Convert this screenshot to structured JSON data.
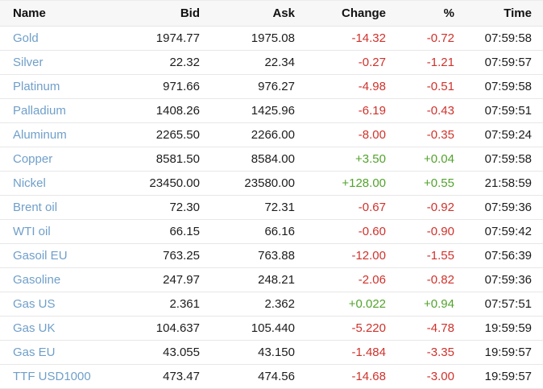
{
  "table": {
    "columns": [
      {
        "key": "name",
        "label": "Name"
      },
      {
        "key": "bid",
        "label": "Bid"
      },
      {
        "key": "ask",
        "label": "Ask"
      },
      {
        "key": "change",
        "label": "Change"
      },
      {
        "key": "pct",
        "label": "%"
      },
      {
        "key": "time",
        "label": "Time"
      }
    ],
    "rows": [
      {
        "name": "Gold",
        "bid": "1974.77",
        "ask": "1975.08",
        "change": "-14.32",
        "pct": "-0.72",
        "time": "07:59:58",
        "direction": "down"
      },
      {
        "name": "Silver",
        "bid": "22.32",
        "ask": "22.34",
        "change": "-0.27",
        "pct": "-1.21",
        "time": "07:59:57",
        "direction": "down"
      },
      {
        "name": "Platinum",
        "bid": "971.66",
        "ask": "976.27",
        "change": "-4.98",
        "pct": "-0.51",
        "time": "07:59:58",
        "direction": "down"
      },
      {
        "name": "Palladium",
        "bid": "1408.26",
        "ask": "1425.96",
        "change": "-6.19",
        "pct": "-0.43",
        "time": "07:59:51",
        "direction": "down"
      },
      {
        "name": "Aluminum",
        "bid": "2265.50",
        "ask": "2266.00",
        "change": "-8.00",
        "pct": "-0.35",
        "time": "07:59:24",
        "direction": "down"
      },
      {
        "name": "Copper",
        "bid": "8581.50",
        "ask": "8584.00",
        "change": "+3.50",
        "pct": "+0.04",
        "time": "07:59:58",
        "direction": "up"
      },
      {
        "name": "Nickel",
        "bid": "23450.00",
        "ask": "23580.00",
        "change": "+128.00",
        "pct": "+0.55",
        "time": "21:58:59",
        "direction": "up"
      },
      {
        "name": "Brent oil",
        "bid": "72.30",
        "ask": "72.31",
        "change": "-0.67",
        "pct": "-0.92",
        "time": "07:59:36",
        "direction": "down"
      },
      {
        "name": "WTI oil",
        "bid": "66.15",
        "ask": "66.16",
        "change": "-0.60",
        "pct": "-0.90",
        "time": "07:59:42",
        "direction": "down"
      },
      {
        "name": "Gasoil EU",
        "bid": "763.25",
        "ask": "763.88",
        "change": "-12.00",
        "pct": "-1.55",
        "time": "07:56:39",
        "direction": "down"
      },
      {
        "name": "Gasoline",
        "bid": "247.97",
        "ask": "248.21",
        "change": "-2.06",
        "pct": "-0.82",
        "time": "07:59:36",
        "direction": "down"
      },
      {
        "name": "Gas US",
        "bid": "2.361",
        "ask": "2.362",
        "change": "+0.022",
        "pct": "+0.94",
        "time": "07:57:51",
        "direction": "up"
      },
      {
        "name": "Gas UK",
        "bid": "104.637",
        "ask": "105.440",
        "change": "-5.220",
        "pct": "-4.78",
        "time": "19:59:59",
        "direction": "down"
      },
      {
        "name": "Gas EU",
        "bid": "43.055",
        "ask": "43.150",
        "change": "-1.484",
        "pct": "-3.35",
        "time": "19:59:57",
        "direction": "down"
      },
      {
        "name": "TTF USD1000",
        "bid": "473.47",
        "ask": "474.56",
        "change": "-14.68",
        "pct": "-3.00",
        "time": "19:59:57",
        "direction": "down"
      }
    ]
  },
  "colors": {
    "name_link": "#6f9fca",
    "up": "#52a32c",
    "down": "#d0312b",
    "header_bg": "#f7f7f7",
    "row_border": "#e7e7e7",
    "text": "#1c1c1c"
  }
}
